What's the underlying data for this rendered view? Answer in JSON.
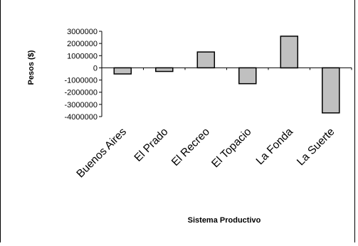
{
  "chart_data": {
    "type": "bar",
    "title": "",
    "xlabel": "Sistema Productivo",
    "ylabel": "Pesos ($)",
    "ylim": [
      -4000000,
      3000000
    ],
    "yticks": [
      3000000,
      2000000,
      1000000,
      0,
      -1000000,
      -2000000,
      -3000000,
      -4000000
    ],
    "ytick_labels": [
      "3000000",
      "2000000",
      "1000000",
      "0",
      "-1000000",
      "-2000000",
      "-3000000",
      "-4000000"
    ],
    "categories": [
      "Buenos Aires",
      "El Prado",
      "El Recreo",
      "El Topacio",
      "La Fonda",
      "La Suerte"
    ],
    "values": [
      -500000,
      -300000,
      1300000,
      -1300000,
      2600000,
      -3700000
    ],
    "bar_color": "#c0c0c0",
    "grid": false,
    "legend": "none"
  }
}
